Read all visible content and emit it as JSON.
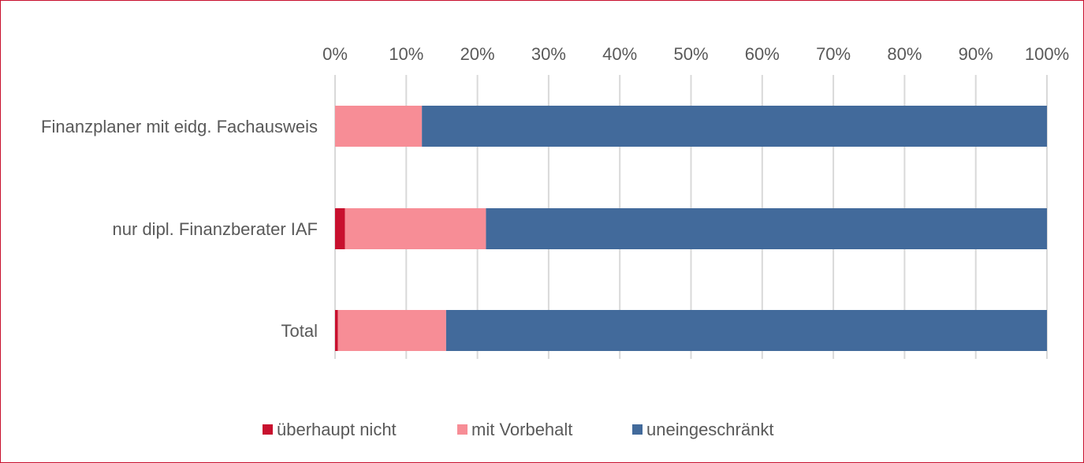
{
  "chart_data": {
    "type": "bar",
    "orientation": "horizontal",
    "stacked": "percent",
    "categories": [
      "Finanzplaner mit eidg. Fachausweis",
      "nur dipl. Finanzberater IAF",
      "Total"
    ],
    "series": [
      {
        "name": "überhaupt nicht",
        "color": "#c8102e",
        "values": [
          0,
          1.4,
          0.4
        ]
      },
      {
        "name": "mit Vorbehalt",
        "color": "#f78d96",
        "values": [
          12.2,
          19.8,
          15.2
        ]
      },
      {
        "name": "uneingeschränkt",
        "color": "#426a9b",
        "values": [
          87.8,
          78.8,
          84.4
        ]
      }
    ],
    "xlim": [
      0,
      100
    ],
    "xticks": [
      "0%",
      "10%",
      "20%",
      "30%",
      "40%",
      "50%",
      "60%",
      "70%",
      "80%",
      "90%",
      "100%"
    ],
    "axis_position": "top",
    "grid": true,
    "legend": "bottom"
  }
}
